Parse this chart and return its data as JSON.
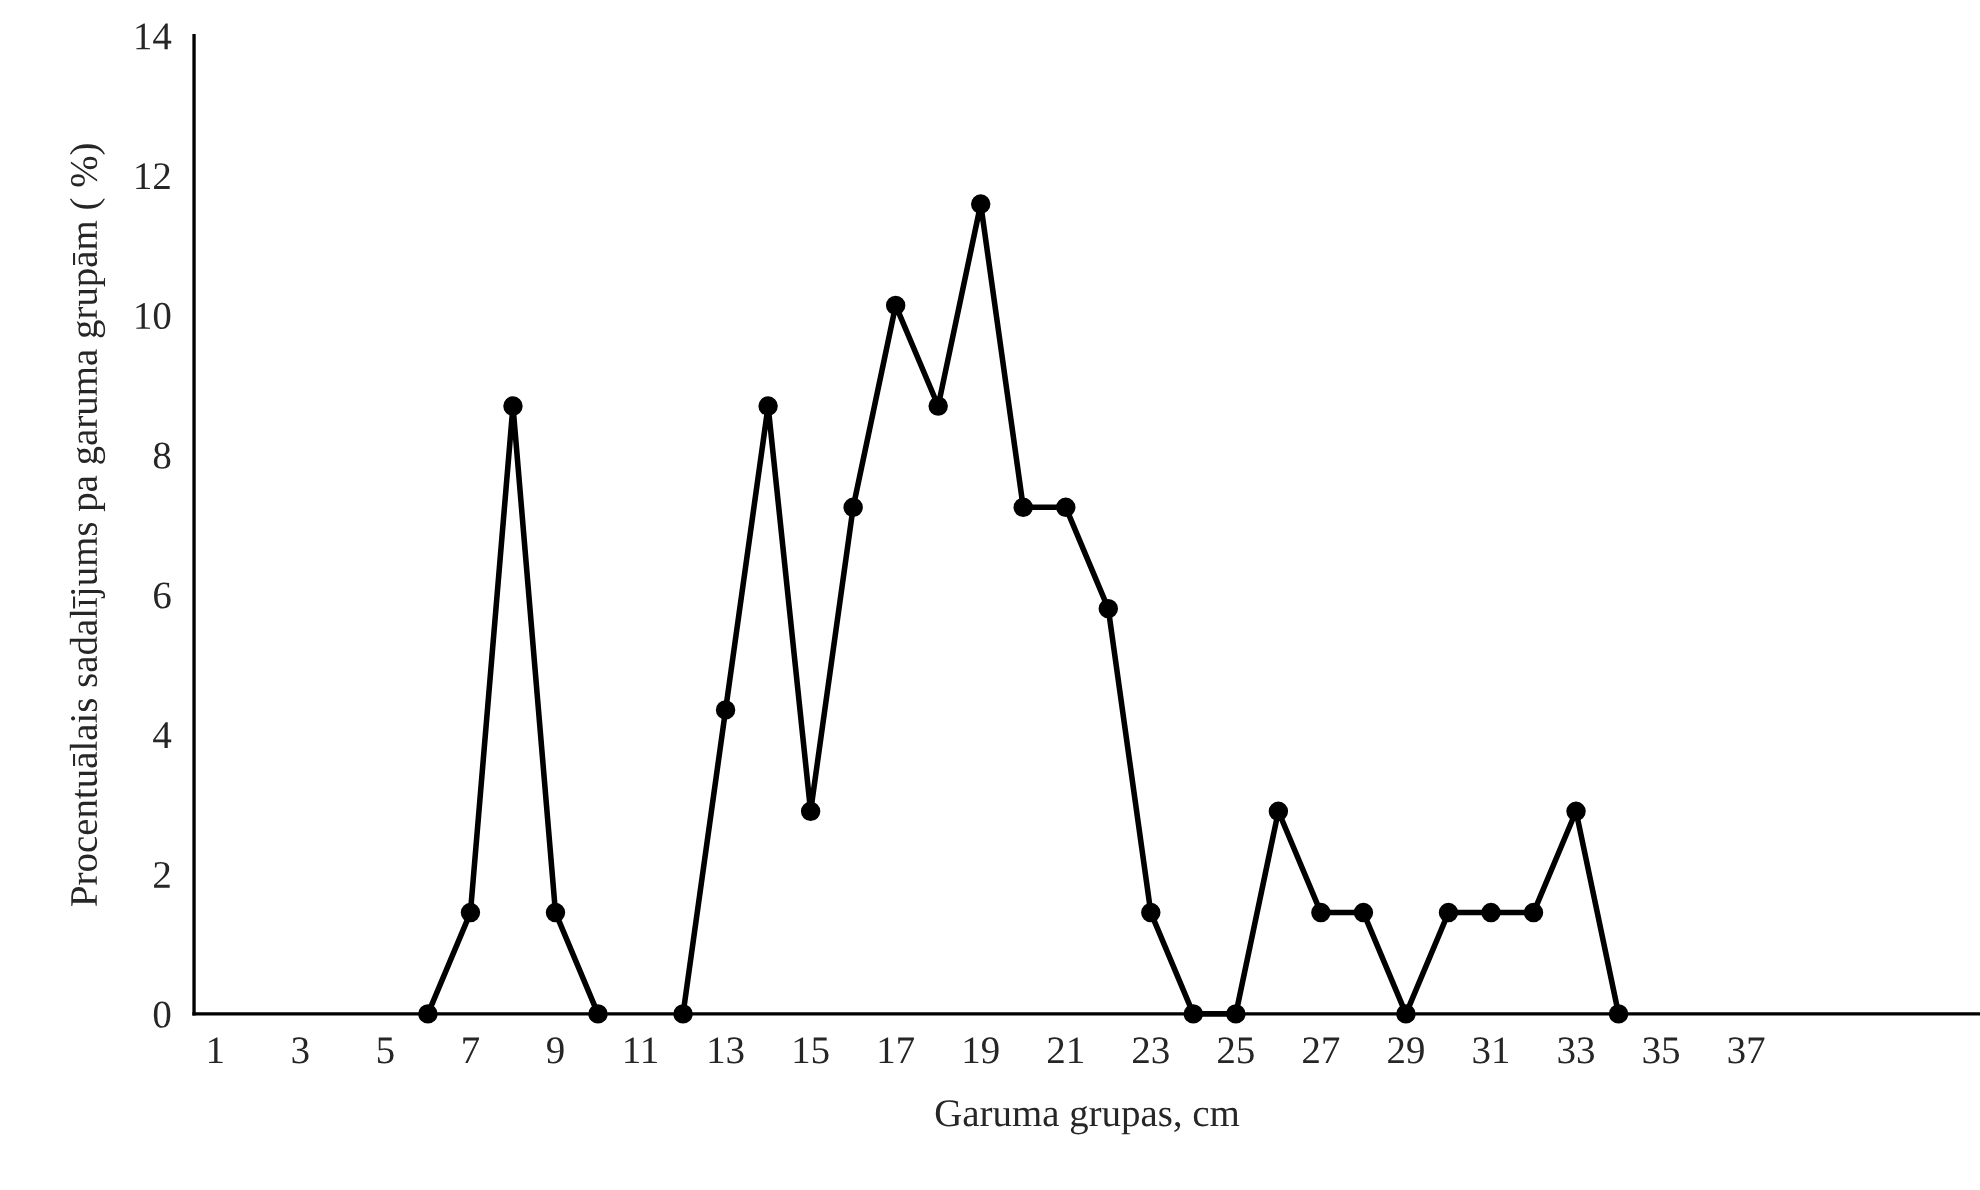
{
  "chart_data": {
    "type": "line",
    "xlabel": "Garuma grupas, cm",
    "ylabel": "Procentuālais sadalījums pa garuma grupām ( %)",
    "categories": [
      "1",
      null,
      "3",
      null,
      "5",
      null,
      "7",
      null,
      "9",
      null,
      "11",
      null,
      "13",
      null,
      "15",
      null,
      "17",
      null,
      "19",
      null,
      "21",
      null,
      "23",
      null,
      "25",
      null,
      "27",
      null,
      "29",
      null,
      "31",
      null,
      "33",
      null,
      "35",
      null,
      "37",
      null,
      null,
      null,
      null,
      null
    ],
    "series": [
      {
        "color": "#000000",
        "values": [
          null,
          null,
          null,
          null,
          null,
          0,
          1.45,
          8.7,
          1.45,
          0,
          null,
          0,
          4.35,
          8.7,
          2.9,
          7.25,
          10.14,
          8.7,
          11.59,
          7.25,
          7.25,
          5.8,
          1.45,
          0,
          0,
          2.9,
          1.45,
          1.45,
          0,
          1.45,
          1.45,
          1.45,
          2.9,
          0,
          null,
          null,
          null,
          null,
          null,
          null,
          null,
          null
        ]
      }
    ],
    "ylim": [
      0,
      14
    ],
    "yticks": [
      0,
      2,
      4,
      6,
      8,
      10,
      12,
      14
    ],
    "marker": "circle",
    "line_style": "solid",
    "grid": false,
    "legend": false
  }
}
